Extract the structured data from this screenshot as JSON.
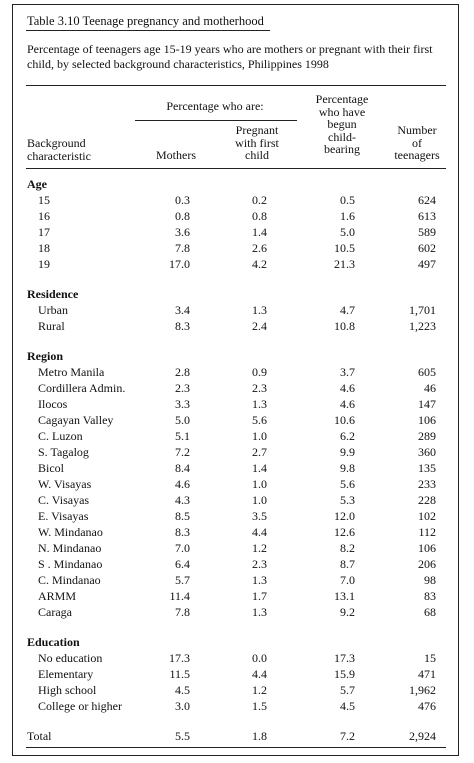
{
  "table": {
    "title": "Table 3.10  Teenage pregnancy and motherhood",
    "subtitle": "Percentage of teenagers age 15-19 years who are mothers or pregnant with their first child, by selected background characteristics, Philippines 1998",
    "header": {
      "group": "Percentage who are:",
      "background": [
        "Background",
        "characteristic"
      ],
      "mothers": "Mothers",
      "pregnant": [
        "Pregnant",
        "with first",
        "child"
      ],
      "begun": [
        "Percentage",
        "who have",
        "begun",
        "child-",
        "bearing"
      ],
      "number": [
        "Number",
        "of",
        "teenagers"
      ]
    },
    "sections": [
      {
        "name": "Age",
        "rows": [
          {
            "label": "15",
            "mothers": "0.3",
            "pregnant": "0.2",
            "begun": "0.5",
            "number": "624"
          },
          {
            "label": "16",
            "mothers": "0.8",
            "pregnant": "0.8",
            "begun": "1.6",
            "number": "613"
          },
          {
            "label": "17",
            "mothers": "3.6",
            "pregnant": "1.4",
            "begun": "5.0",
            "number": "589"
          },
          {
            "label": "18",
            "mothers": "7.8",
            "pregnant": "2.6",
            "begun": "10.5",
            "number": "602"
          },
          {
            "label": "19",
            "mothers": "17.0",
            "pregnant": "4.2",
            "begun": "21.3",
            "number": "497"
          }
        ]
      },
      {
        "name": "Residence",
        "rows": [
          {
            "label": "Urban",
            "mothers": "3.4",
            "pregnant": "1.3",
            "begun": "4.7",
            "number": "1,701"
          },
          {
            "label": "Rural",
            "mothers": "8.3",
            "pregnant": "2.4",
            "begun": "10.8",
            "number": "1,223"
          }
        ]
      },
      {
        "name": "Region",
        "rows": [
          {
            "label": "Metro Manila",
            "mothers": "2.8",
            "pregnant": "0.9",
            "begun": "3.7",
            "number": "605"
          },
          {
            "label": "Cordillera Admin.",
            "mothers": "2.3",
            "pregnant": "2.3",
            "begun": "4.6",
            "number": "46"
          },
          {
            "label": "Ilocos",
            "mothers": "3.3",
            "pregnant": "1.3",
            "begun": "4.6",
            "number": "147"
          },
          {
            "label": "Cagayan Valley",
            "mothers": "5.0",
            "pregnant": "5.6",
            "begun": "10.6",
            "number": "106"
          },
          {
            "label": "C. Luzon",
            "mothers": "5.1",
            "pregnant": "1.0",
            "begun": "6.2",
            "number": "289"
          },
          {
            "label": "S. Tagalog",
            "mothers": "7.2",
            "pregnant": "2.7",
            "begun": "9.9",
            "number": "360"
          },
          {
            "label": "Bicol",
            "mothers": "8.4",
            "pregnant": "1.4",
            "begun": "9.8",
            "number": "135"
          },
          {
            "label": "W. Visayas",
            "mothers": "4.6",
            "pregnant": "1.0",
            "begun": "5.6",
            "number": "233"
          },
          {
            "label": "C. Visayas",
            "mothers": "4.3",
            "pregnant": "1.0",
            "begun": "5.3",
            "number": "228"
          },
          {
            "label": "E. Visayas",
            "mothers": "8.5",
            "pregnant": "3.5",
            "begun": "12.0",
            "number": "102"
          },
          {
            "label": "W. Mindanao",
            "mothers": "8.3",
            "pregnant": "4.4",
            "begun": "12.6",
            "number": "112"
          },
          {
            "label": "N. Mindanao",
            "mothers": "7.0",
            "pregnant": "1.2",
            "begun": "8.2",
            "number": "106"
          },
          {
            "label": "S . Mindanao",
            "mothers": "6.4",
            "pregnant": "2.3",
            "begun": "8.7",
            "number": "206"
          },
          {
            "label": "C. Mindanao",
            "mothers": "5.7",
            "pregnant": "1.3",
            "begun": "7.0",
            "number": "98"
          },
          {
            "label": "ARMM",
            "mothers": "11.4",
            "pregnant": "1.7",
            "begun": "13.1",
            "number": "83"
          },
          {
            "label": "Caraga",
            "mothers": "7.8",
            "pregnant": "1.3",
            "begun": "9.2",
            "number": "68"
          }
        ]
      },
      {
        "name": "Education",
        "rows": [
          {
            "label": "No education",
            "mothers": "17.3",
            "pregnant": "0.0",
            "begun": "17.3",
            "number": "15"
          },
          {
            "label": "Elementary",
            "mothers": "11.5",
            "pregnant": "4.4",
            "begun": "15.9",
            "number": "471"
          },
          {
            "label": "High school",
            "mothers": "4.5",
            "pregnant": "1.2",
            "begun": "5.7",
            "number": "1,962"
          },
          {
            "label": "College or higher",
            "mothers": "3.0",
            "pregnant": "1.5",
            "begun": "4.5",
            "number": "476"
          }
        ]
      }
    ],
    "total": {
      "label": "Total",
      "mothers": "5.5",
      "pregnant": "1.8",
      "begun": "7.2",
      "number": "2,924"
    }
  }
}
